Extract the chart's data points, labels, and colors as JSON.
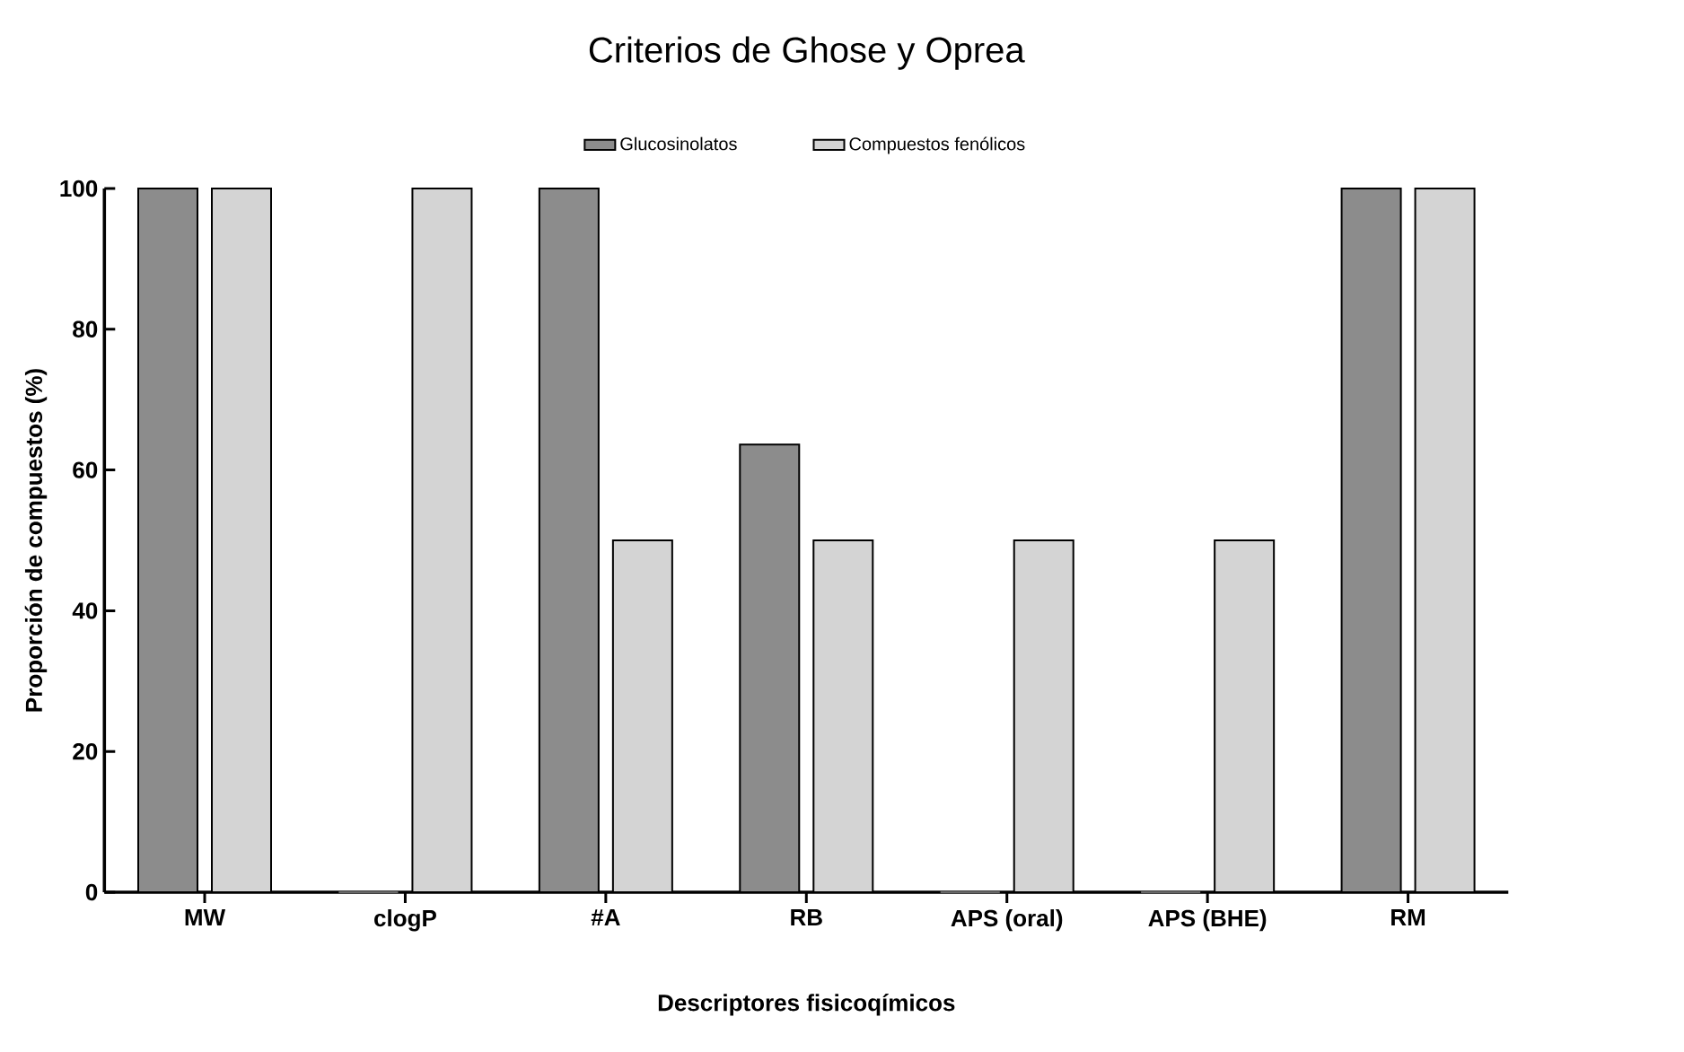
{
  "chart_data": {
    "type": "bar",
    "title": "Criterios de Ghose y Oprea",
    "xlabel": "Descriptores fisicoqímicos",
    "ylabel": "Proporción de compuestos (%)",
    "categories": [
      "MW",
      "clogP",
      "#A",
      "RB",
      "APS (oral)",
      "APS (BHE)",
      "RM"
    ],
    "series": [
      {
        "name": "Glucosinolatos",
        "color": "#8c8c8c",
        "values": [
          100,
          0,
          100,
          63.6,
          0,
          0,
          100
        ]
      },
      {
        "name": "Compuestos fenólicos",
        "color": "#d4d4d4",
        "values": [
          100,
          100,
          50,
          50,
          50,
          50,
          100
        ]
      }
    ],
    "ylim": [
      0,
      100
    ],
    "yticks": [
      0,
      20,
      40,
      60,
      80,
      100
    ],
    "grid": false,
    "legend": "top"
  }
}
